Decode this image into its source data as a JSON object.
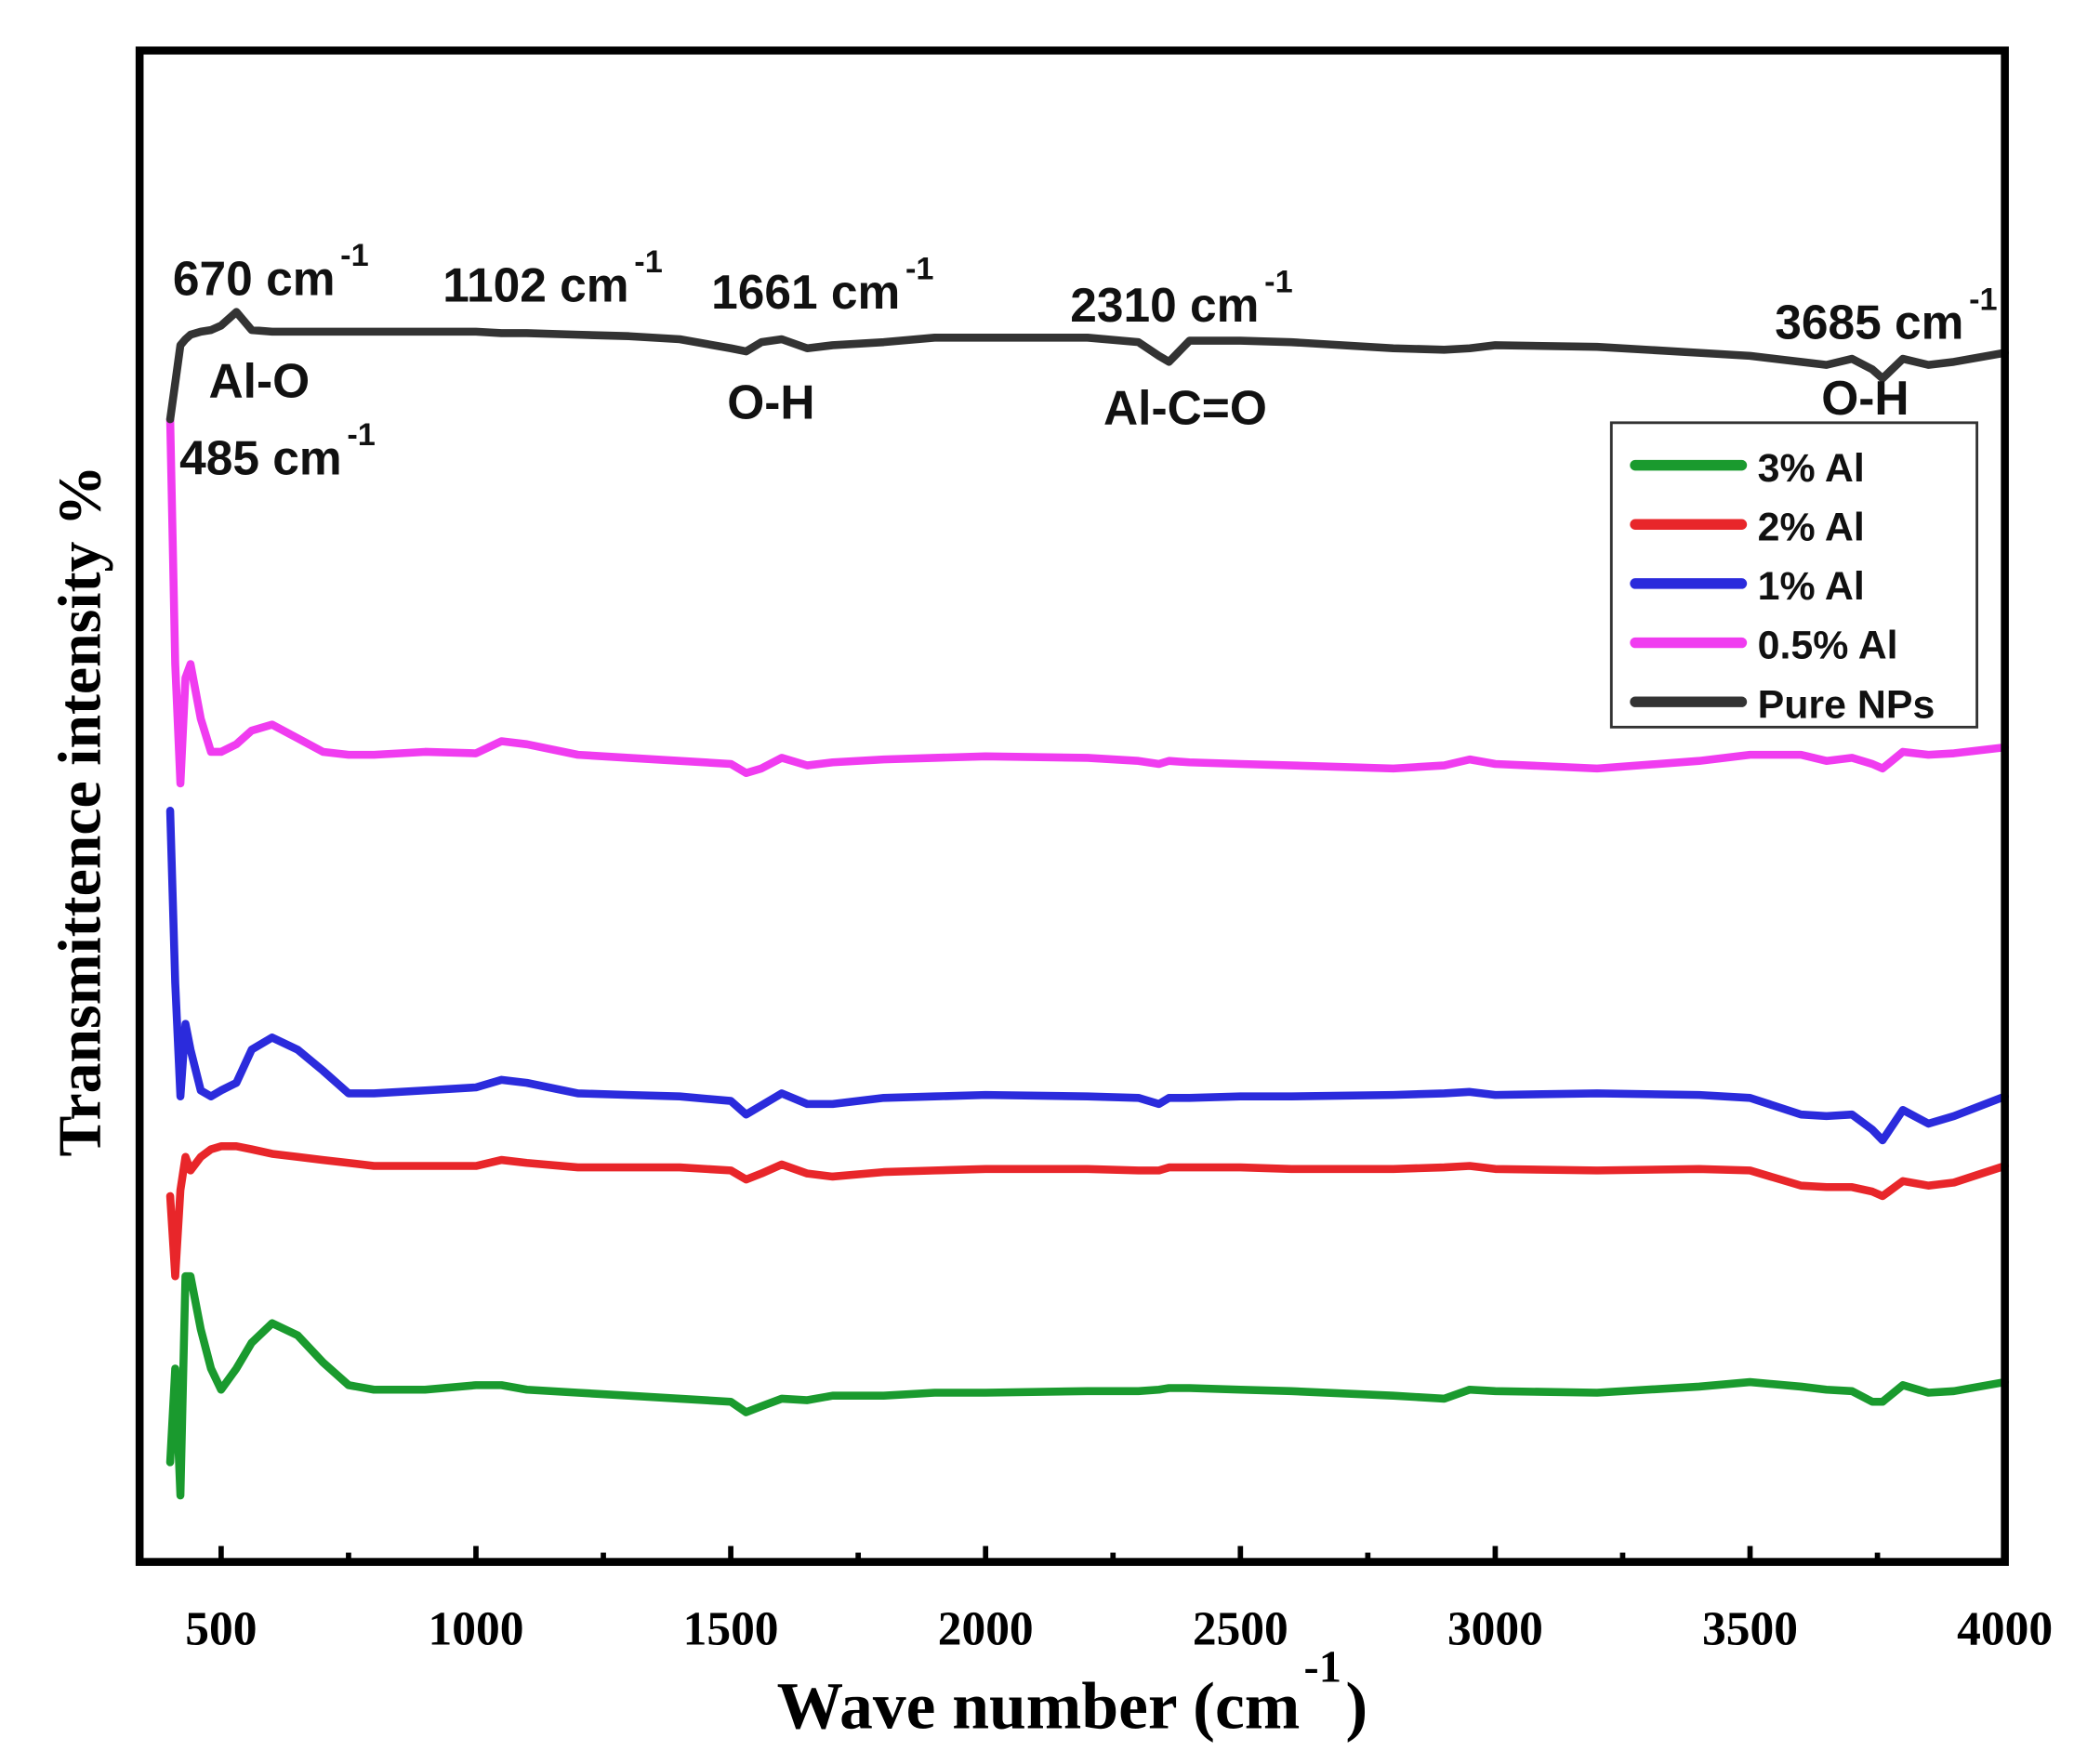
{
  "chart_data": {
    "type": "line",
    "xlabel": [
      "Wave number (cm",
      "-1",
      ")"
    ],
    "ylabel": "Transmittence intensity %",
    "xlim": [
      340,
      4000
    ],
    "ylim": [
      0,
      100
    ],
    "xticks": [
      500,
      1000,
      1500,
      2000,
      2500,
      3000,
      3500,
      4000
    ],
    "xminorticks": [
      750,
      1250,
      1750,
      2250,
      2750,
      3250,
      3750
    ],
    "legend": "upper right",
    "x": [
      400,
      410,
      420,
      430,
      440,
      460,
      480,
      500,
      530,
      560,
      600,
      650,
      700,
      750,
      800,
      900,
      1000,
      1050,
      1100,
      1200,
      1300,
      1400,
      1500,
      1530,
      1560,
      1600,
      1650,
      1700,
      1800,
      1900,
      2000,
      2200,
      2300,
      2340,
      2360,
      2400,
      2500,
      2600,
      2800,
      2900,
      2950,
      3000,
      3200,
      3400,
      3500,
      3600,
      3650,
      3700,
      3740,
      3760,
      3800,
      3850,
      3900,
      4000
    ],
    "series": [
      {
        "name": "3% Al",
        "color": "#1a9a2e",
        "values": [
          6.6,
          12.8,
          4.4,
          18.9,
          18.9,
          15.4,
          12.8,
          11.4,
          12.8,
          14.5,
          15.8,
          15.0,
          13.2,
          11.7,
          11.4,
          11.4,
          11.7,
          11.7,
          11.4,
          11.2,
          11.0,
          10.8,
          10.6,
          9.9,
          10.3,
          10.8,
          10.7,
          11.0,
          11.0,
          11.2,
          11.2,
          11.3,
          11.3,
          11.4,
          11.5,
          11.5,
          11.4,
          11.3,
          11.0,
          10.8,
          11.4,
          11.3,
          11.2,
          11.6,
          11.9,
          11.6,
          11.4,
          11.3,
          10.6,
          10.6,
          11.7,
          11.2,
          11.3,
          11.9
        ]
      },
      {
        "name": "2% Al",
        "color": "#e8262a",
        "values": [
          24.2,
          18.9,
          24.6,
          26.8,
          25.9,
          26.8,
          27.3,
          27.5,
          27.5,
          27.3,
          27.0,
          26.8,
          26.6,
          26.4,
          26.2,
          26.2,
          26.2,
          26.6,
          26.4,
          26.1,
          26.1,
          26.1,
          25.9,
          25.3,
          25.7,
          26.3,
          25.7,
          25.5,
          25.8,
          25.9,
          26.0,
          26.0,
          25.9,
          25.9,
          26.1,
          26.1,
          26.1,
          26.0,
          26.0,
          26.1,
          26.2,
          26.0,
          25.9,
          26.0,
          25.9,
          24.9,
          24.8,
          24.8,
          24.5,
          24.2,
          25.2,
          24.9,
          25.1,
          26.2
        ]
      },
      {
        "name": "1% Al",
        "color": "#2b2bdc",
        "values": [
          49.7,
          38.3,
          30.8,
          35.6,
          33.9,
          31.2,
          30.8,
          31.2,
          31.7,
          33.9,
          34.7,
          33.9,
          32.5,
          31.0,
          31.0,
          31.2,
          31.4,
          31.9,
          31.7,
          31.0,
          30.9,
          30.8,
          30.5,
          29.6,
          30.2,
          31.0,
          30.3,
          30.3,
          30.7,
          30.8,
          30.9,
          30.8,
          30.7,
          30.3,
          30.7,
          30.7,
          30.8,
          30.8,
          30.9,
          31.0,
          31.1,
          30.9,
          31.0,
          30.9,
          30.7,
          29.6,
          29.5,
          29.6,
          28.6,
          27.9,
          29.9,
          29.0,
          29.5,
          30.8
        ]
      },
      {
        "name": "0.5% Al",
        "color": "#f03cf0",
        "values": [
          75.6,
          59.4,
          51.5,
          58.5,
          59.4,
          55.8,
          53.6,
          53.6,
          54.1,
          55.0,
          55.4,
          54.5,
          53.6,
          53.4,
          53.4,
          53.6,
          53.5,
          54.3,
          54.1,
          53.4,
          53.2,
          53.0,
          52.8,
          52.2,
          52.5,
          53.2,
          52.7,
          52.9,
          53.1,
          53.2,
          53.3,
          53.2,
          53.0,
          52.8,
          53.0,
          52.9,
          52.8,
          52.7,
          52.5,
          52.7,
          53.1,
          52.8,
          52.5,
          53.0,
          53.4,
          53.4,
          53.0,
          53.2,
          52.8,
          52.5,
          53.6,
          53.4,
          53.5,
          53.9
        ]
      },
      {
        "name": "Pure NPs",
        "color": "#333333",
        "values": [
          75.6,
          78.0,
          80.5,
          80.9,
          81.2,
          81.4,
          81.5,
          81.8,
          82.7,
          81.5,
          81.4,
          81.4,
          81.4,
          81.4,
          81.4,
          81.4,
          81.4,
          81.3,
          81.3,
          81.2,
          81.1,
          80.9,
          80.3,
          80.1,
          80.7,
          80.9,
          80.3,
          80.5,
          80.7,
          81.0,
          81.0,
          81.0,
          80.7,
          79.8,
          79.4,
          80.8,
          80.8,
          80.7,
          80.3,
          80.2,
          80.3,
          80.5,
          80.4,
          80.0,
          79.8,
          79.4,
          79.2,
          79.6,
          78.9,
          78.3,
          79.6,
          79.2,
          79.4,
          80.0
        ]
      }
    ],
    "annotations": [
      {
        "label": "670 cm",
        "sup": "-1"
      },
      {
        "label": "Al-O"
      },
      {
        "label": "485 cm",
        "sup": "-1"
      },
      {
        "label": "1102 cm",
        "sup": "-1"
      },
      {
        "label": "1661 cm",
        "sup": "-1"
      },
      {
        "label": "O-H"
      },
      {
        "label": "2310 cm",
        "sup": "-1"
      },
      {
        "label": "Al-C=O"
      },
      {
        "label": "3685 cm",
        "sup": "-1"
      },
      {
        "label": "O-H"
      }
    ]
  }
}
